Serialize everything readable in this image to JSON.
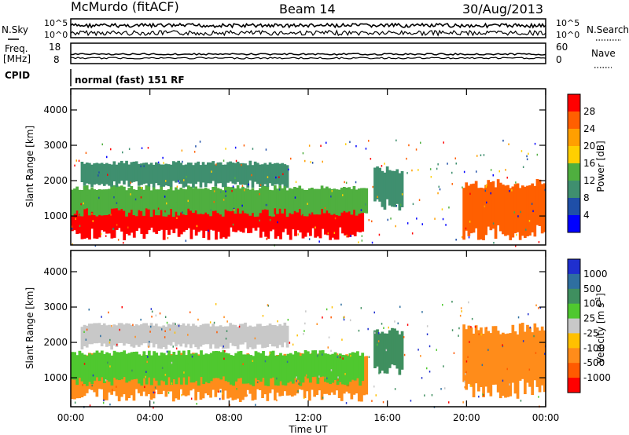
{
  "header": {
    "station": "McMurdo (fitACF)",
    "beam": "Beam 14",
    "date": "30/Aug/2013"
  },
  "noise_panel": {
    "left_label": "N.Sky",
    "right_label": "N.Search",
    "left_ticks": [
      "10^5",
      "10^0"
    ],
    "right_ticks": [
      "10^5",
      "10^0"
    ]
  },
  "freq_panel": {
    "left_label_1": "Freq.",
    "left_label_2": "[MHz]",
    "left_ticks": [
      "18",
      "8"
    ],
    "right_label": "Nave",
    "right_ticks": [
      "60",
      "0"
    ]
  },
  "cpid_panel": {
    "label": "CPID",
    "value": "normal (fast) 151 RF"
  },
  "colors": {
    "frame": "#000000",
    "power_scale": [
      "#0000ff",
      "#1f4fa8",
      "#3f8f6f",
      "#4faf3f",
      "#ffcf00",
      "#ff9f00",
      "#ff5f00",
      "#ff0000"
    ],
    "velocity_scale": [
      "#ff0000",
      "#ff5a00",
      "#ff8c1a",
      "#ffc000",
      "#c8c8c8",
      "#4fc82f",
      "#3f8f5f",
      "#2f6fa0",
      "#1f2fcf"
    ]
  },
  "chart_data": [
    {
      "type": "heatmap",
      "name": "power",
      "ylabel": "Slant Range [km]",
      "y_ticks": [
        "1000",
        "2000",
        "3000",
        "4000"
      ],
      "ylim": [
        180,
        4600
      ],
      "colorbar_label": "Power [dB]",
      "colorbar_ticks": [
        "4",
        "8",
        "12",
        "16",
        "20",
        "24",
        "28"
      ],
      "colorbar_range": [
        0,
        32
      ],
      "echo_bands": [
        {
          "t0": 0.0,
          "t1": 14.8,
          "r0": 500,
          "r1": 1550,
          "color_index": 7
        },
        {
          "t0": 0.0,
          "t1": 15.0,
          "r0": 1100,
          "r1": 1800,
          "color_index": 3
        },
        {
          "t0": 15.3,
          "t1": 16.8,
          "r0": 1300,
          "r1": 2300,
          "color_index": 2
        },
        {
          "t0": 19.8,
          "t1": 24.0,
          "r0": 500,
          "r1": 1900,
          "color_index": 6
        },
        {
          "t0": 0.5,
          "t1": 11.0,
          "r0": 1900,
          "r1": 2500,
          "color_index": 2
        }
      ]
    },
    {
      "type": "heatmap",
      "name": "velocity",
      "ylabel": "Slant Range [km]",
      "y_ticks": [
        "1000",
        "2000",
        "3000",
        "4000"
      ],
      "ylim": [
        180,
        4600
      ],
      "colorbar_label": "Velocity [m s",
      "colorbar_label_sup": "-1",
      "colorbar_label_end": "]",
      "colorbar_ticks": [
        "1000",
        "500",
        "100",
        "25",
        "-25",
        "-100",
        "-500",
        "-1000"
      ],
      "echo_bands": [
        {
          "t0": 0.0,
          "t1": 15.0,
          "r0": 500,
          "r1": 1600,
          "color_index": 2
        },
        {
          "t0": 0.0,
          "t1": 14.8,
          "r0": 900,
          "r1": 1700,
          "color_index": 5
        },
        {
          "t0": 15.3,
          "t1": 16.8,
          "r0": 1200,
          "r1": 2300,
          "color_index": 6
        },
        {
          "t0": 19.8,
          "t1": 24.0,
          "r0": 700,
          "r1": 2400,
          "color_index": 2
        },
        {
          "t0": 0.5,
          "t1": 11.0,
          "r0": 1900,
          "r1": 2500,
          "color_index": 4
        }
      ]
    }
  ],
  "x_axis": {
    "label": "Time UT",
    "ticks": [
      "00:00",
      "04:00",
      "08:00",
      "12:00",
      "16:00",
      "20:00",
      "00:00"
    ],
    "hours": [
      0,
      24
    ]
  }
}
